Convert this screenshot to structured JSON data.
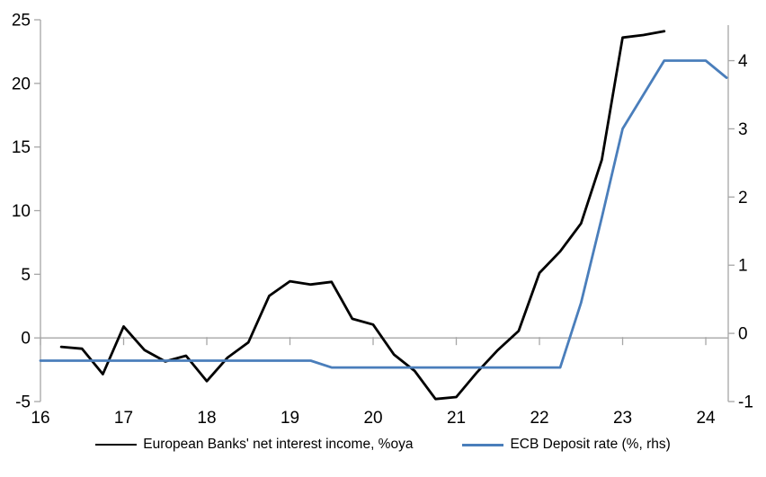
{
  "chart_data": {
    "type": "line",
    "title": "",
    "legend_position": "bottom",
    "grid": "zero-line-only",
    "x_axis": {
      "min": 16,
      "max": 24.27,
      "ticks": [
        16,
        17,
        18,
        19,
        20,
        21,
        22,
        23,
        24
      ]
    },
    "left_axis": {
      "min": -5,
      "max": 25,
      "ticks": [
        25,
        20,
        15,
        10,
        5,
        0,
        -5
      ]
    },
    "right_axis": {
      "min": -1,
      "max": 4.6,
      "ticks": [
        4,
        3,
        2,
        1,
        0,
        -1
      ]
    },
    "series": [
      {
        "id": "nii",
        "name": "European Banks' net interest income, %oya",
        "axis": "left",
        "color": "#000000",
        "x": [
          16.25,
          16.5,
          16.75,
          17,
          17.25,
          17.5,
          17.75,
          18,
          18.25,
          18.5,
          18.75,
          19,
          19.25,
          19.5,
          19.75,
          20,
          20.25,
          20.5,
          20.75,
          21,
          21.25,
          21.5,
          21.75,
          22,
          22.25,
          22.5,
          22.75,
          23,
          23.25,
          23.5
        ],
        "values": [
          -0.7,
          -0.85,
          -2.85,
          0.9,
          -0.95,
          -1.85,
          -1.4,
          -3.4,
          -1.55,
          -0.35,
          3.3,
          4.45,
          4.2,
          4.4,
          1.5,
          1.05,
          -1.3,
          -2.6,
          -4.8,
          -4.65,
          -2.7,
          -0.95,
          0.55,
          5.1,
          6.8,
          9.0,
          14.0,
          23.6,
          23.8,
          24.1
        ]
      },
      {
        "id": "ecb-deposit-rate",
        "name": "ECB Deposit rate (%, rhs)",
        "axis": "right",
        "color": "#4a7ebb",
        "x": [
          16,
          19.25,
          19.5,
          22.25,
          22.5,
          22.75,
          23,
          23.5,
          24,
          24.25
        ],
        "values": [
          -0.4,
          -0.4,
          -0.5,
          -0.5,
          0.45,
          1.7,
          3.0,
          4.0,
          4.0,
          3.75
        ]
      }
    ]
  },
  "colors": {
    "axis": "#a6a6a6",
    "text": "#000000",
    "nii_line": "#000000",
    "ecb_line": "#4a7ebb"
  }
}
